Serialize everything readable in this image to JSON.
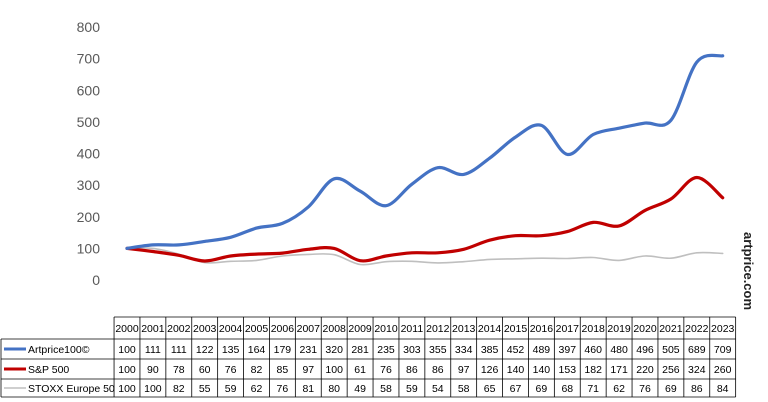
{
  "chart_data": {
    "type": "line",
    "title": "",
    "xlabel": "",
    "ylabel": "",
    "ylim": [
      0,
      800
    ],
    "y_ticks": [
      0,
      100,
      200,
      300,
      400,
      500,
      600,
      700,
      800
    ],
    "grid": false,
    "legend_placement": "data table below chart",
    "categories": [
      "2000",
      "2001",
      "2002",
      "2003",
      "2004",
      "2005",
      "2006",
      "2007",
      "2008",
      "2009",
      "2010",
      "2011",
      "2012",
      "2013",
      "2014",
      "2015",
      "2016",
      "2017",
      "2018",
      "2019",
      "2020",
      "2021",
      "2022",
      "2023"
    ],
    "series": [
      {
        "name": "Artprice100©",
        "color": "#4472C4",
        "values": [
          100,
          111,
          111,
          122,
          135,
          164,
          179,
          231,
          320,
          281,
          235,
          303,
          355,
          334,
          385,
          452,
          489,
          397,
          460,
          480,
          496,
          505,
          689,
          709
        ]
      },
      {
        "name": "S&P 500",
        "color": "#C00000",
        "values": [
          100,
          90,
          78,
          60,
          76,
          82,
          85,
          97,
          100,
          61,
          76,
          86,
          86,
          97,
          126,
          140,
          140,
          153,
          182,
          171,
          220,
          256,
          324,
          260
        ]
      },
      {
        "name": "STOXX Europe 50",
        "color": "#BFBFBF",
        "values": [
          100,
          100,
          82,
          55,
          59,
          62,
          76,
          81,
          80,
          49,
          58,
          59,
          54,
          58,
          65,
          67,
          69,
          68,
          71,
          62,
          76,
          69,
          86,
          84
        ]
      }
    ],
    "watermark": "artprice.com"
  }
}
